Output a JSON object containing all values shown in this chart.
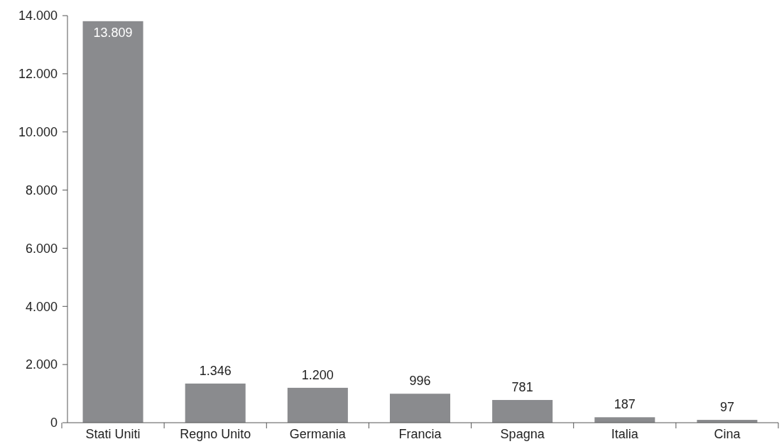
{
  "chart_data": {
    "type": "bar",
    "categories": [
      "Stati Uniti",
      "Regno Unito",
      "Germania",
      "Francia",
      "Spagna",
      "Italia",
      "Cina"
    ],
    "values": [
      13809,
      1346,
      1200,
      996,
      781,
      187,
      97
    ],
    "value_labels": [
      "13.809",
      "1.346",
      "1.200",
      "996",
      "781",
      "187",
      "97"
    ],
    "color": "#8a8b8e",
    "ylim": [
      0,
      14000
    ],
    "yticks": [
      {
        "value": 0,
        "label": "0"
      },
      {
        "value": 2000,
        "label": "2.000"
      },
      {
        "value": 4000,
        "label": "4.000"
      },
      {
        "value": 6000,
        "label": "6.000"
      },
      {
        "value": 8000,
        "label": "8.000"
      },
      {
        "value": 10000,
        "label": "10.000"
      },
      {
        "value": 12000,
        "label": "12.000"
      },
      {
        "value": 14000,
        "label": "14.000"
      }
    ],
    "grid": false
  }
}
